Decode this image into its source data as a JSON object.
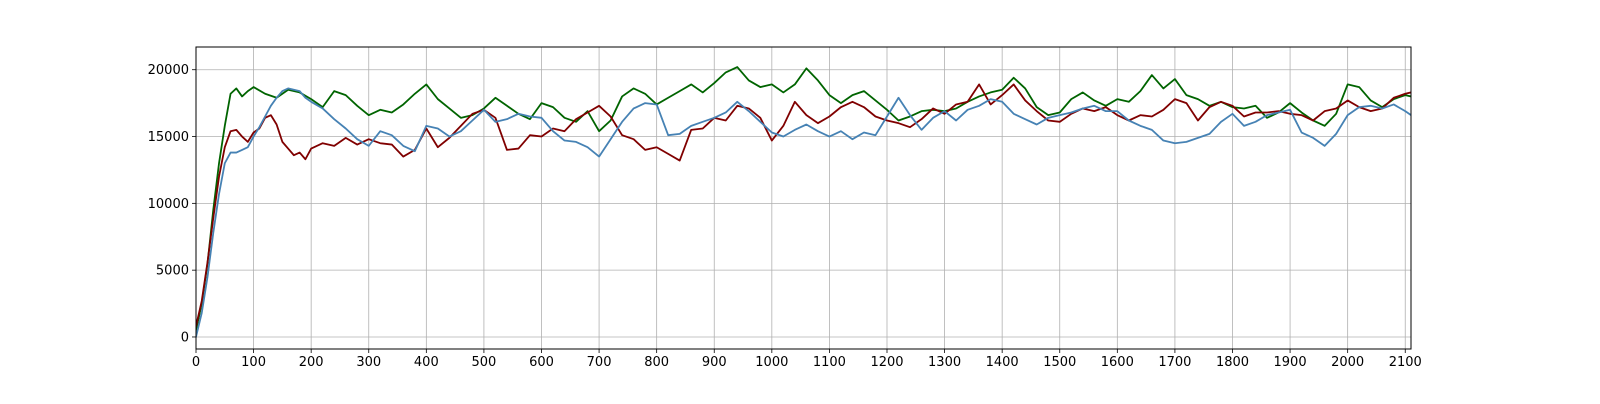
{
  "chart_data": {
    "type": "line",
    "title": "",
    "xlabel": "",
    "ylabel": "",
    "xlim": [
      0,
      2110
    ],
    "ylim": [
      -900,
      21700
    ],
    "xticks": [
      0,
      100,
      200,
      300,
      400,
      500,
      600,
      700,
      800,
      900,
      1000,
      1100,
      1200,
      1300,
      1400,
      1500,
      1600,
      1700,
      1800,
      1900,
      2000,
      2100
    ],
    "yticks": [
      0,
      5000,
      10000,
      15000,
      20000
    ],
    "grid": true,
    "legend": "none",
    "series": [
      {
        "color": "#006400",
        "x": [
          0,
          10,
          20,
          30,
          40,
          50,
          60,
          70,
          80,
          90,
          100,
          120,
          140,
          160,
          180,
          200,
          220,
          240,
          260,
          280,
          300,
          320,
          340,
          360,
          380,
          400,
          420,
          440,
          460,
          480,
          500,
          520,
          540,
          560,
          580,
          600,
          620,
          640,
          660,
          680,
          700,
          720,
          740,
          760,
          780,
          800,
          820,
          840,
          860,
          880,
          900,
          920,
          940,
          960,
          980,
          1000,
          1020,
          1040,
          1060,
          1080,
          1100,
          1120,
          1140,
          1160,
          1180,
          1200,
          1220,
          1240,
          1260,
          1280,
          1300,
          1320,
          1340,
          1360,
          1380,
          1400,
          1420,
          1440,
          1460,
          1480,
          1500,
          1520,
          1540,
          1560,
          1580,
          1600,
          1620,
          1640,
          1660,
          1680,
          1700,
          1720,
          1740,
          1760,
          1780,
          1800,
          1820,
          1840,
          1860,
          1880,
          1900,
          1920,
          1940,
          1960,
          1980,
          2000,
          2020,
          2040,
          2060,
          2080,
          2100,
          2110
        ],
        "y": [
          500,
          2500,
          5500,
          9500,
          13000,
          15800,
          18200,
          18600,
          18000,
          18400,
          18700,
          18200,
          17900,
          18500,
          18300,
          17800,
          17200,
          18400,
          18100,
          17300,
          16600,
          17000,
          16800,
          17400,
          18200,
          18900,
          17800,
          17100,
          16400,
          16600,
          17100,
          17900,
          17300,
          16700,
          16300,
          17500,
          17200,
          16400,
          16100,
          16900,
          15400,
          16200,
          18000,
          18600,
          18200,
          17400,
          17900,
          18400,
          18900,
          18300,
          19000,
          19800,
          20200,
          19200,
          18700,
          18900,
          18300,
          18900,
          20100,
          19200,
          18100,
          17500,
          18100,
          18400,
          17700,
          17000,
          16200,
          16500,
          16900,
          17000,
          16900,
          17100,
          17600,
          18000,
          18300,
          18500,
          19400,
          18600,
          17200,
          16600,
          16800,
          17800,
          18300,
          17700,
          17300,
          17800,
          17600,
          18400,
          19600,
          18600,
          19300,
          18100,
          17800,
          17300,
          17600,
          17200,
          17100,
          17300,
          16400,
          16800,
          17500,
          16800,
          16200,
          15800,
          16700,
          18900,
          18700,
          17700,
          17200,
          17800,
          18100,
          18000
        ]
      },
      {
        "color": "#800000",
        "x": [
          0,
          10,
          20,
          30,
          40,
          50,
          60,
          70,
          80,
          90,
          100,
          110,
          120,
          130,
          140,
          150,
          160,
          170,
          180,
          190,
          200,
          220,
          240,
          260,
          280,
          300,
          320,
          340,
          360,
          380,
          400,
          420,
          440,
          460,
          480,
          500,
          520,
          540,
          560,
          580,
          600,
          620,
          640,
          660,
          680,
          700,
          720,
          740,
          760,
          780,
          800,
          820,
          840,
          860,
          880,
          900,
          920,
          940,
          960,
          980,
          1000,
          1020,
          1040,
          1060,
          1080,
          1100,
          1120,
          1140,
          1160,
          1180,
          1200,
          1220,
          1240,
          1260,
          1280,
          1300,
          1320,
          1340,
          1360,
          1380,
          1400,
          1420,
          1440,
          1460,
          1480,
          1500,
          1520,
          1540,
          1560,
          1580,
          1600,
          1620,
          1640,
          1660,
          1680,
          1700,
          1720,
          1740,
          1760,
          1780,
          1800,
          1820,
          1840,
          1860,
          1880,
          1900,
          1920,
          1940,
          1960,
          1980,
          2000,
          2020,
          2040,
          2060,
          2080,
          2100,
          2110
        ],
        "y": [
          800,
          2700,
          5600,
          8900,
          12000,
          14200,
          15400,
          15500,
          15000,
          14600,
          15300,
          15600,
          16400,
          16600,
          15900,
          14600,
          14100,
          13600,
          13800,
          13300,
          14100,
          14500,
          14300,
          14900,
          14400,
          14800,
          14500,
          14400,
          13500,
          14000,
          15600,
          14200,
          14900,
          15800,
          16700,
          17000,
          16400,
          14000,
          14100,
          15100,
          15000,
          15600,
          15400,
          16300,
          16800,
          17300,
          16500,
          15100,
          14800,
          14000,
          14200,
          13700,
          13200,
          15500,
          15600,
          16400,
          16200,
          17300,
          17100,
          16400,
          14700,
          15800,
          17600,
          16600,
          16000,
          16500,
          17200,
          17600,
          17200,
          16500,
          16200,
          16000,
          15700,
          16300,
          17100,
          16700,
          17400,
          17600,
          18900,
          17400,
          18100,
          18900,
          17700,
          16900,
          16200,
          16100,
          16700,
          17100,
          16900,
          17200,
          16600,
          16200,
          16600,
          16500,
          17000,
          17800,
          17500,
          16200,
          17200,
          17600,
          17300,
          16500,
          16800,
          16800,
          16900,
          16700,
          16600,
          16200,
          16900,
          17100,
          17700,
          17200,
          16900,
          17100,
          17900,
          18200,
          18300
        ]
      },
      {
        "color": "#4682B4",
        "x": [
          0,
          10,
          20,
          30,
          40,
          50,
          60,
          70,
          80,
          90,
          100,
          110,
          120,
          130,
          140,
          150,
          160,
          170,
          180,
          190,
          200,
          220,
          240,
          260,
          280,
          300,
          320,
          340,
          360,
          380,
          400,
          420,
          440,
          460,
          480,
          500,
          520,
          540,
          560,
          580,
          600,
          620,
          640,
          660,
          680,
          700,
          720,
          740,
          760,
          780,
          800,
          820,
          840,
          860,
          880,
          900,
          920,
          940,
          960,
          980,
          1000,
          1020,
          1040,
          1060,
          1080,
          1100,
          1120,
          1140,
          1160,
          1180,
          1200,
          1220,
          1240,
          1260,
          1280,
          1300,
          1320,
          1340,
          1360,
          1380,
          1400,
          1420,
          1440,
          1460,
          1480,
          1500,
          1520,
          1540,
          1560,
          1580,
          1600,
          1620,
          1640,
          1660,
          1680,
          1700,
          1720,
          1740,
          1760,
          1780,
          1800,
          1820,
          1840,
          1860,
          1880,
          1900,
          1920,
          1940,
          1960,
          1980,
          2000,
          2020,
          2040,
          2060,
          2080,
          2100,
          2110
        ],
        "y": [
          0,
          1800,
          4500,
          7800,
          10700,
          13000,
          13800,
          13800,
          14000,
          14200,
          15000,
          15700,
          16500,
          17300,
          17900,
          18400,
          18600,
          18500,
          18400,
          17900,
          17600,
          17100,
          16300,
          15600,
          14800,
          14300,
          15400,
          15100,
          14300,
          13900,
          15800,
          15600,
          15000,
          15400,
          16200,
          17000,
          16100,
          16300,
          16700,
          16500,
          16400,
          15400,
          14700,
          14600,
          14200,
          13500,
          14800,
          16100,
          17100,
          17500,
          17400,
          15100,
          15200,
          15800,
          16100,
          16400,
          16800,
          17600,
          16900,
          16100,
          15300,
          15000,
          15500,
          15900,
          15400,
          15000,
          15400,
          14800,
          15300,
          15100,
          16500,
          17900,
          16600,
          15500,
          16400,
          16900,
          16200,
          17000,
          17300,
          17800,
          17600,
          16700,
          16300,
          15900,
          16400,
          16600,
          16800,
          17100,
          17300,
          16900,
          16900,
          16200,
          15800,
          15500,
          14700,
          14500,
          14600,
          14900,
          15200,
          16100,
          16700,
          15800,
          16100,
          16600,
          16800,
          17000,
          15300,
          14900,
          14300,
          15200,
          16600,
          17200,
          17300,
          17100,
          17400,
          16900,
          16600
        ]
      }
    ]
  }
}
